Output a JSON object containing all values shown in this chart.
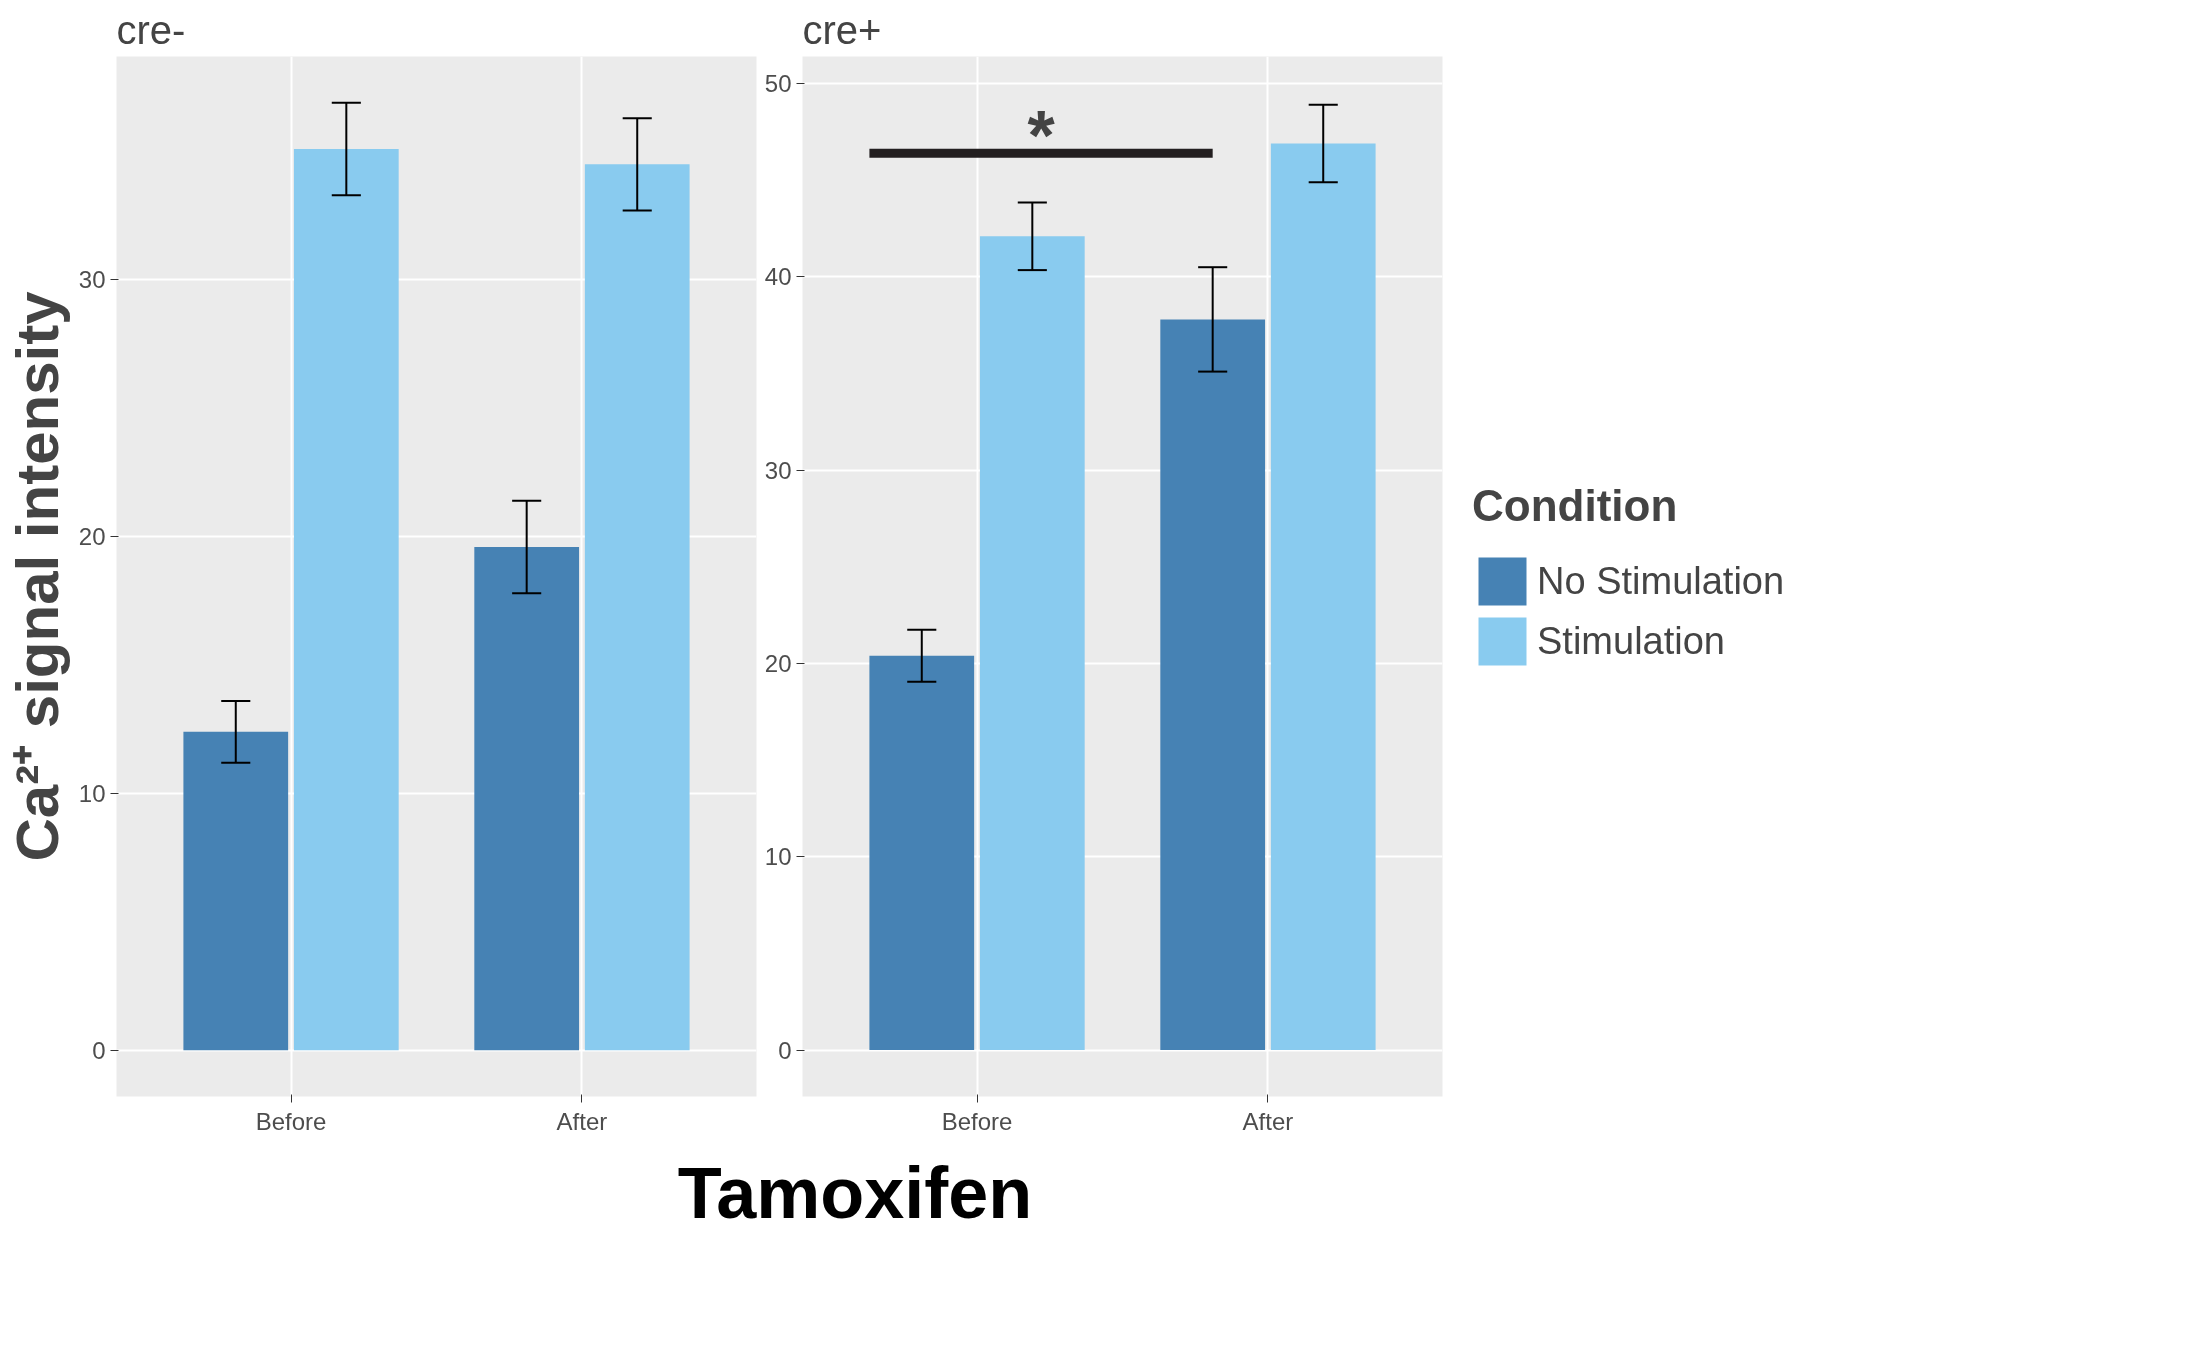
{
  "chart_data": [
    {
      "type": "bar",
      "title": "cre-",
      "ylabel": "Ca²⁺ signal intensity",
      "xlabel": "Tamoxifen",
      "categories": [
        "Before",
        "After"
      ],
      "series": [
        {
          "color": "#4682b4",
          "values": [
            12.4,
            19.6
          ],
          "errors": [
            1.2,
            1.8
          ]
        },
        {
          "color": "#89cbef",
          "values": [
            35.1,
            34.5
          ],
          "errors": [
            1.8,
            1.8
          ]
        }
      ],
      "ylim": [
        -1.8,
        38.7
      ],
      "yticks": [
        0,
        10,
        20,
        30
      ],
      "grid": true
    },
    {
      "type": "bar",
      "title": "cre+",
      "categories": [
        "Before",
        "After"
      ],
      "series": [
        {
          "name": "No Stimulation",
          "color": "#4682b4",
          "values": [
            20.4,
            37.8
          ],
          "errors": [
            1.35,
            2.7
          ]
        },
        {
          "name": "Stimulation",
          "color": "#89cbef",
          "values": [
            42.1,
            46.9
          ],
          "errors": [
            1.75,
            2.0
          ]
        }
      ],
      "ylim": [
        -2.4,
        51.4
      ],
      "yticks": [
        0,
        10,
        20,
        30,
        40,
        50
      ],
      "grid": true,
      "legend": "right",
      "legend_title": "Condition",
      "annotations": [
        "*"
      ]
    }
  ]
}
